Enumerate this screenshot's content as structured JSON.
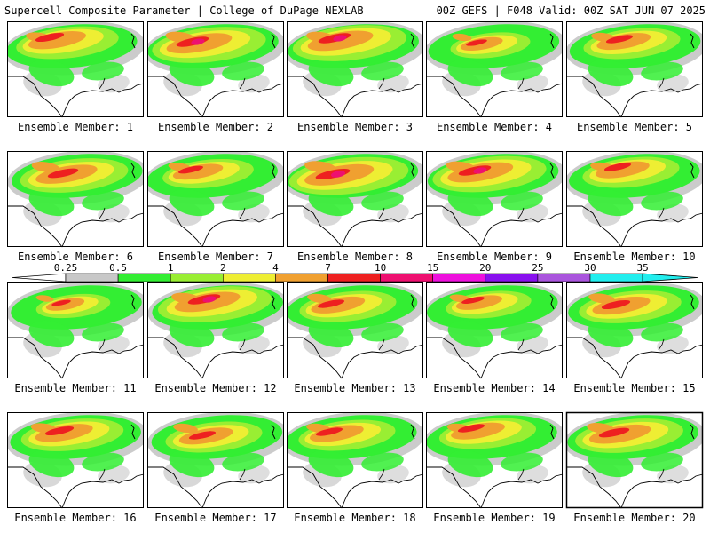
{
  "header": {
    "left_title": "Supercell Composite Parameter | College of DuPage NEXLAB",
    "right_title": "00Z GEFS | F048 Valid: 00Z SAT JUN 07 2025"
  },
  "colorbar": {
    "levels": [
      "0.25",
      "0.5",
      "1",
      "2",
      "4",
      "7",
      "10",
      "15",
      "20",
      "25",
      "30",
      "35"
    ],
    "colors": [
      "#ffffff",
      "#c8c8c8",
      "#33ee33",
      "#99ee33",
      "#eeee33",
      "#f0a030",
      "#ee2020",
      "#ee1070",
      "#ee10dd",
      "#8810ee",
      "#aa55dd",
      "#22eeee"
    ]
  },
  "panels": [
    {
      "label": "Ensemble Member: 1",
      "intensity": 0.75
    },
    {
      "label": "Ensemble Member: 2",
      "intensity": 0.85
    },
    {
      "label": "Ensemble Member: 3",
      "intensity": 0.85
    },
    {
      "label": "Ensemble Member: 4",
      "intensity": 0.55
    },
    {
      "label": "Ensemble Member: 5",
      "intensity": 0.7
    },
    {
      "label": "Ensemble Member: 6",
      "intensity": 0.8
    },
    {
      "label": "Ensemble Member: 7",
      "intensity": 0.65
    },
    {
      "label": "Ensemble Member: 8",
      "intensity": 0.9
    },
    {
      "label": "Ensemble Member: 9",
      "intensity": 0.85
    },
    {
      "label": "Ensemble Member: 10",
      "intensity": 0.7
    },
    {
      "label": "Ensemble Member: 11",
      "intensity": 0.5
    },
    {
      "label": "Ensemble Member: 12",
      "intensity": 0.85
    },
    {
      "label": "Ensemble Member: 13",
      "intensity": 0.7
    },
    {
      "label": "Ensemble Member: 14",
      "intensity": 0.6
    },
    {
      "label": "Ensemble Member: 15",
      "intensity": 0.75
    },
    {
      "label": "Ensemble Member: 16",
      "intensity": 0.75
    },
    {
      "label": "Ensemble Member: 17",
      "intensity": 0.7
    },
    {
      "label": "Ensemble Member: 18",
      "intensity": 0.7
    },
    {
      "label": "Ensemble Member: 19",
      "intensity": 0.7
    },
    {
      "label": "Ensemble Member: 20",
      "intensity": 0.8
    }
  ]
}
